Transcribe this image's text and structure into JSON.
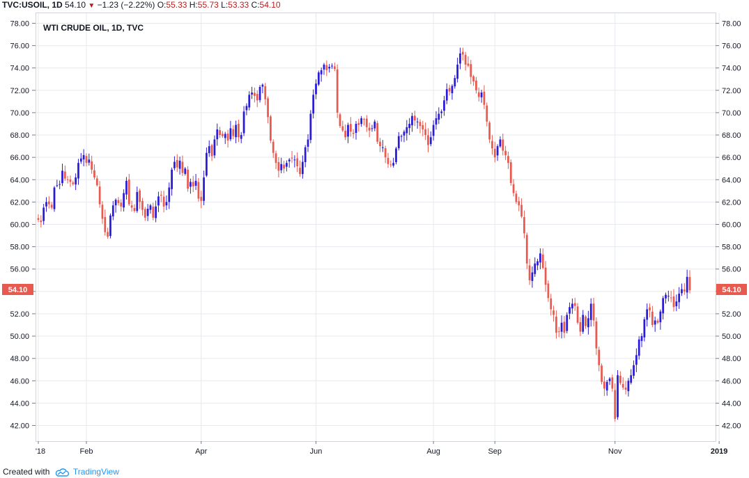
{
  "header": {
    "symbol": "TVC:USOIL, 1D",
    "last": "54.10",
    "change": "−1.23 (−2.22%)",
    "open_label": "O:",
    "open": "55.33",
    "high_label": "H:",
    "high": "55.73",
    "low_label": "L:",
    "low": "53.33",
    "close_label": "C:",
    "close": "54.10",
    "down_icon": "triangle-down-icon"
  },
  "footer": {
    "created_with": "Created with",
    "brand": "TradingView",
    "logo_icon": "tradingview-cloud-icon"
  },
  "colors": {
    "up": "#2a1bd8",
    "down": "#e8594f",
    "grid": "#e6e9ee",
    "axis": "#787b86",
    "price_badge": "#e8594f"
  },
  "chart_data": {
    "type": "candlestick",
    "title": "WTI CRUDE OIL, 1D, TVC",
    "price_label": "54.10",
    "ylim": [
      40.6,
      78.9
    ],
    "grid": true,
    "y_ticks": [
      "42.00",
      "44.00",
      "46.00",
      "48.00",
      "50.00",
      "52.00",
      "54.00",
      "56.00",
      "58.00",
      "60.00",
      "62.00",
      "64.00",
      "66.00",
      "68.00",
      "70.00",
      "72.00",
      "74.00",
      "76.00",
      "78.00"
    ],
    "x_ticks": [
      "'18",
      "Feb",
      "Apr",
      "Jun",
      "Aug",
      "Sep",
      "Nov",
      "2019"
    ],
    "x_tick_index": [
      0,
      18,
      61,
      104,
      148,
      171,
      216,
      255
    ],
    "bold_tick": "2019",
    "closes": [
      60.4,
      60.2,
      61.5,
      62.0,
      61.8,
      61.5,
      63.3,
      63.5,
      63.6,
      64.8,
      64.1,
      64.0,
      63.8,
      63.6,
      64.2,
      65.5,
      65.9,
      66.2,
      65.5,
      65.8,
      64.9,
      64.2,
      63.5,
      61.8,
      60.5,
      59.3,
      58.9,
      60.8,
      61.7,
      62.2,
      61.9,
      61.6,
      62.8,
      63.9,
      61.8,
      61.5,
      61.2,
      62.9,
      62.0,
      61.3,
      60.6,
      61.4,
      61.7,
      60.6,
      61.6,
      62.5,
      62.6,
      61.6,
      62.0,
      63.3,
      64.9,
      65.6,
      65.1,
      65.7,
      64.6,
      65.0,
      63.2,
      63.8,
      63.4,
      63.9,
      62.3,
      62.1,
      64.2,
      66.4,
      67.0,
      66.1,
      67.6,
      68.5,
      68.0,
      67.9,
      68.1,
      67.5,
      68.6,
      67.9,
      68.9,
      67.8,
      68.0,
      70.1,
      70.6,
      71.6,
      71.8,
      71.5,
      71.1,
      72.3,
      72.5,
      71.2,
      69.6,
      67.5,
      66.4,
      65.5,
      64.8,
      65.4,
      65.0,
      65.5,
      65.8,
      65.9,
      65.8,
      65.2,
      64.5,
      65.6,
      66.9,
      67.6,
      69.9,
      71.6,
      72.6,
      73.6,
      73.8,
      74.3,
      73.8,
      74.1,
      74.2,
      73.9,
      70.0,
      68.8,
      68.4,
      67.8,
      68.9,
      68.3,
      68.1,
      69.0,
      68.9,
      69.5,
      69.4,
      68.7,
      68.4,
      68.6,
      69.2,
      67.4,
      67.0,
      66.9,
      66.0,
      65.4,
      65.3,
      65.5,
      66.8,
      67.9,
      67.9,
      68.3,
      68.7,
      69.0,
      69.7,
      69.3,
      69.2,
      68.8,
      68.5,
      68.0,
      67.1,
      67.8,
      68.9,
      69.5,
      69.9,
      70.1,
      71.1,
      72.1,
      71.9,
      72.4,
      73.1,
      74.3,
      75.3,
      75.2,
      74.3,
      74.2,
      73.2,
      72.8,
      72.0,
      71.4,
      71.8,
      70.7,
      69.2,
      67.6,
      66.8,
      66.0,
      67.0,
      67.6,
      66.6,
      66.2,
      65.5,
      63.7,
      62.8,
      62.0,
      61.7,
      60.7,
      59.2,
      56.5,
      55.0,
      55.7,
      56.5,
      56.7,
      57.4,
      56.1,
      54.6,
      53.4,
      52.4,
      51.9,
      50.3,
      50.4,
      51.2,
      50.3,
      51.9,
      52.6,
      52.9,
      52.7,
      51.2,
      50.4,
      51.9,
      50.9,
      51.6,
      52.9,
      51.4,
      48.9,
      47.4,
      45.9,
      45.3,
      45.9,
      46.2,
      45.3,
      42.6,
      46.5,
      45.8,
      45.4,
      45.2,
      46.0,
      46.5,
      47.4,
      48.3,
      49.7,
      50.0,
      51.5,
      52.4,
      52.3,
      51.0,
      51.4,
      51.2,
      52.2,
      53.4,
      53.7,
      53.6,
      53.4,
      52.6,
      53.1,
      53.8,
      54.2,
      54.0,
      55.3,
      54.1
    ]
  }
}
